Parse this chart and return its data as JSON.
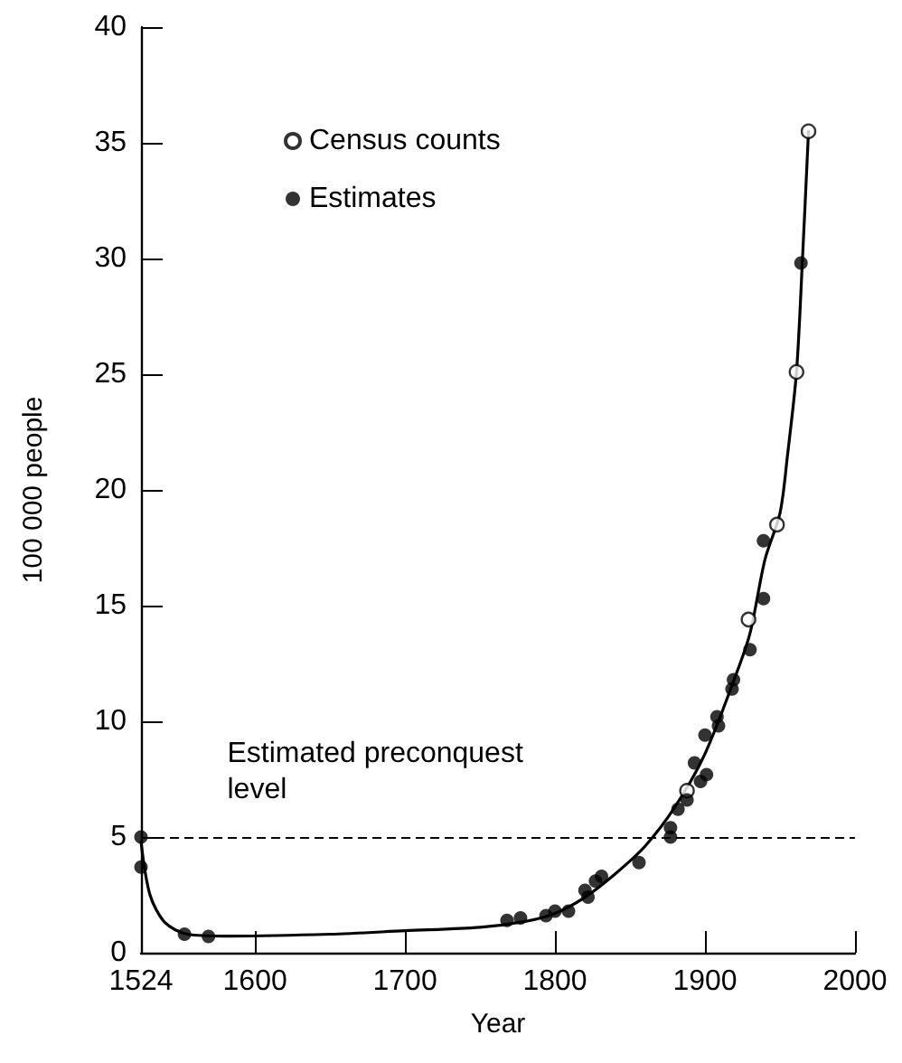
{
  "chart_data": {
    "type": "scatter",
    "xlabel": "Year",
    "ylabel": "100 000 people",
    "xlim": [
      1524,
      2000
    ],
    "xticks": [
      1524,
      1600,
      1700,
      1800,
      1900,
      2000
    ],
    "ylim": [
      0,
      40
    ],
    "yticks": [
      0,
      5,
      10,
      15,
      20,
      25,
      30,
      35,
      40
    ],
    "grid": false,
    "legend": "top left",
    "marker": "circle",
    "series": [
      {
        "name": "Census counts",
        "color": "#ffffff",
        "x": [
          1888,
          1929,
          1948,
          1961,
          1969
        ],
        "values": [
          7.0,
          14.4,
          18.5,
          25.1,
          35.5
        ]
      },
      {
        "name": "Estimates",
        "color": "#000000",
        "x": [
          1524,
          1524,
          1553,
          1569,
          1768,
          1777,
          1794,
          1800,
          1809,
          1820,
          1822,
          1827,
          1831,
          1856,
          1877,
          1877,
          1882,
          1888,
          1893,
          1897,
          1900,
          1901,
          1908,
          1909,
          1918,
          1919,
          1930,
          1939,
          1939,
          1964
        ],
        "values": [
          5.0,
          3.7,
          0.8,
          0.7,
          1.4,
          1.5,
          1.6,
          1.8,
          1.8,
          2.7,
          2.4,
          3.1,
          3.3,
          3.9,
          5.4,
          5.0,
          6.2,
          6.6,
          8.2,
          7.4,
          9.4,
          7.7,
          10.2,
          9.8,
          11.4,
          11.8,
          13.1,
          15.3,
          17.8,
          29.8
        ]
      },
      {
        "type": "line",
        "color": "#000000",
        "marker": "none",
        "line_style": "solid",
        "x": [
          1524,
          1530,
          1540,
          1555,
          1580,
          1650,
          1700,
          1750,
          1780,
          1800,
          1820,
          1840,
          1860,
          1880,
          1900,
          1920,
          1930,
          1940,
          1950,
          1955,
          1961,
          1965,
          1969
        ],
        "values": [
          4.8,
          2.5,
          1.3,
          0.8,
          0.72,
          0.8,
          0.95,
          1.1,
          1.35,
          1.7,
          2.4,
          3.4,
          4.6,
          6.3,
          8.6,
          11.9,
          13.8,
          17.0,
          19.0,
          21.5,
          25.1,
          30.0,
          35.5
        ]
      }
    ],
    "ref_lines": [
      {
        "axis": "y",
        "value": 5,
        "line_style": "dashed",
        "color": "#000000",
        "label": "Estimated preconquest level"
      }
    ]
  }
}
